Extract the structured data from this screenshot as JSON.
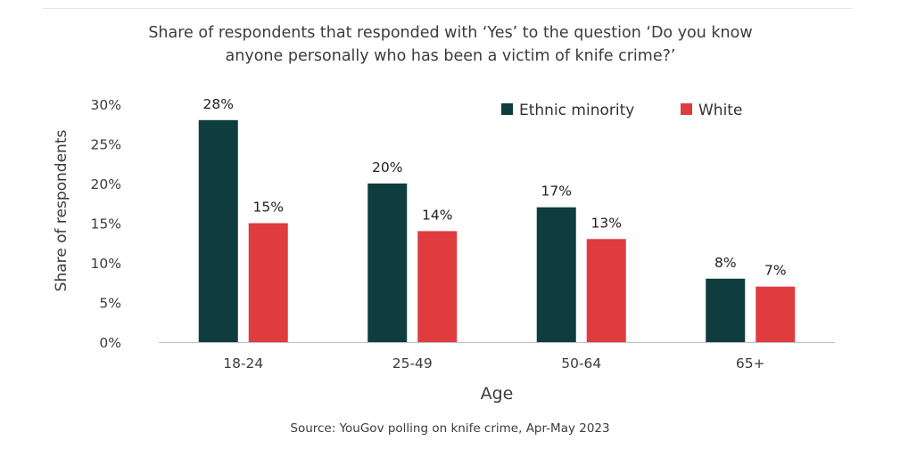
{
  "chart_data": {
    "type": "bar",
    "title_lines": [
      "Share of respondents that responded with ‘Yes’ to the question ‘Do you know",
      "anyone personally who has been a victim of knife crime?’"
    ],
    "xlabel": "Age",
    "ylabel": "Share of respondents",
    "categories": [
      "18-24",
      "25-49",
      "50-64",
      "65+"
    ],
    "series": [
      {
        "name": "Ethnic minority",
        "color": "#0f3d3e",
        "values": [
          28,
          20,
          17,
          8
        ],
        "labels": [
          "28%",
          "20%",
          "17%",
          "8%"
        ]
      },
      {
        "name": "White",
        "color": "#e03c40",
        "values": [
          15,
          14,
          13,
          7
        ],
        "labels": [
          "15%",
          "14%",
          "13%",
          "7%"
        ]
      }
    ],
    "ylim": [
      0,
      30
    ],
    "yticks": [
      0,
      5,
      10,
      15,
      20,
      25,
      30
    ],
    "ytick_labels": [
      "0%",
      "5%",
      "10%",
      "15%",
      "20%",
      "25%",
      "30%"
    ],
    "legend_position": "top-right",
    "grid": false,
    "source": "Source: YouGov polling on knife crime, Apr-May 2023"
  }
}
